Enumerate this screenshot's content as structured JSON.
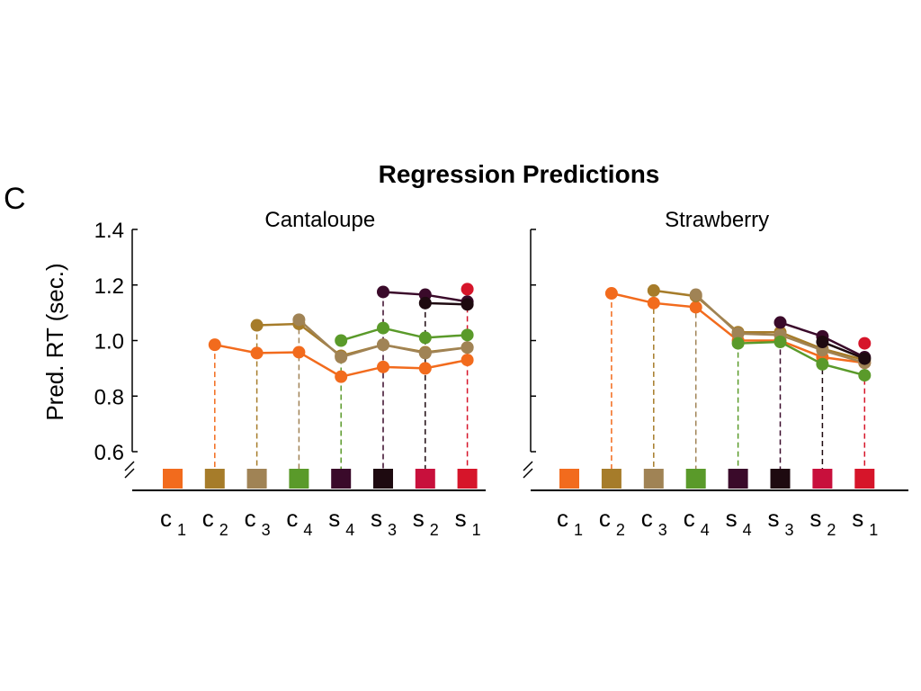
{
  "panel_letter": "C",
  "chart_data": {
    "type": "line",
    "title": "Regression Predictions",
    "ylabel": "Pred. RT (sec.)",
    "ylim": [
      0.6,
      1.4
    ],
    "yticks": [
      "0.6",
      "0.8",
      "1.0",
      "1.2",
      "1.4"
    ],
    "categories": [
      {
        "base": "c",
        "sub": "1"
      },
      {
        "base": "c",
        "sub": "2"
      },
      {
        "base": "c",
        "sub": "3"
      },
      {
        "base": "c",
        "sub": "4"
      },
      {
        "base": "s",
        "sub": "4"
      },
      {
        "base": "s",
        "sub": "3"
      },
      {
        "base": "s",
        "sub": "2"
      },
      {
        "base": "s",
        "sub": "1"
      }
    ],
    "category_colors": [
      "#f26b1d",
      "#a67c2a",
      "#a08355",
      "#5a9a2a",
      "#3a0a2a",
      "#1e0a10",
      "#c8103c",
      "#d6152a"
    ],
    "grid": false,
    "panels": [
      {
        "title": "Cantaloupe",
        "series": [
          {
            "color": "#f26b1d",
            "start": 1,
            "values": [
              null,
              0.985,
              0.955,
              0.958,
              0.87,
              0.905,
              0.9,
              0.93
            ]
          },
          {
            "color": "#a67c2a",
            "start": 2,
            "values": [
              null,
              null,
              1.055,
              1.06,
              0.945,
              0.985,
              0.958,
              0.975
            ]
          },
          {
            "color": "#a08355",
            "start": 3,
            "values": [
              null,
              null,
              null,
              1.075,
              0.94,
              0.985,
              0.955,
              0.975
            ]
          },
          {
            "color": "#5a9a2a",
            "start": 4,
            "values": [
              null,
              null,
              null,
              null,
              1.0,
              1.045,
              1.01,
              1.02
            ]
          },
          {
            "color": "#3a0a2a",
            "start": 5,
            "values": [
              null,
              null,
              null,
              null,
              null,
              1.175,
              1.165,
              1.14
            ]
          },
          {
            "color": "#1e0a10",
            "start": 6,
            "values": [
              null,
              null,
              null,
              null,
              null,
              null,
              1.135,
              1.13
            ]
          },
          {
            "color": "#d6152a",
            "start": 7,
            "values": [
              null,
              null,
              null,
              null,
              null,
              null,
              null,
              1.185
            ]
          }
        ]
      },
      {
        "title": "Strawberry",
        "series": [
          {
            "color": "#f26b1d",
            "start": 1,
            "values": [
              null,
              1.17,
              1.135,
              1.12,
              1.0,
              1.0,
              0.94,
              0.92
            ]
          },
          {
            "color": "#a67c2a",
            "start": 2,
            "values": [
              null,
              null,
              1.18,
              1.16,
              1.03,
              1.03,
              0.97,
              0.93
            ]
          },
          {
            "color": "#a08355",
            "start": 3,
            "values": [
              null,
              null,
              null,
              1.165,
              1.025,
              1.02,
              0.965,
              0.92
            ]
          },
          {
            "color": "#5a9a2a",
            "start": 4,
            "values": [
              null,
              null,
              null,
              null,
              0.99,
              0.995,
              0.915,
              0.875
            ]
          },
          {
            "color": "#3a0a2a",
            "start": 5,
            "values": [
              null,
              null,
              null,
              null,
              null,
              1.065,
              1.015,
              0.94
            ]
          },
          {
            "color": "#1e0a10",
            "start": 6,
            "values": [
              null,
              null,
              null,
              null,
              null,
              null,
              0.995,
              0.935
            ]
          },
          {
            "color": "#d6152a",
            "start": 7,
            "values": [
              null,
              null,
              null,
              null,
              null,
              null,
              null,
              0.99
            ]
          }
        ]
      }
    ]
  }
}
